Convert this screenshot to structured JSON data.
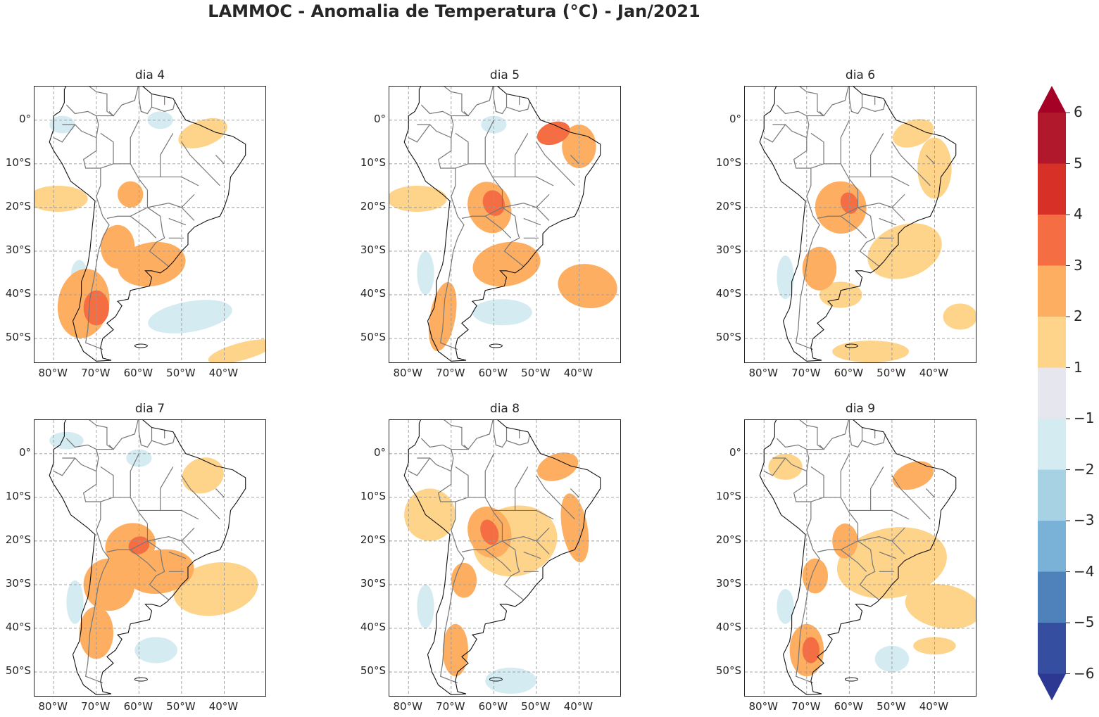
{
  "title": "LAMMOC - Anomalia de Temperatura (°C) - Jan/2021",
  "panels": [
    {
      "title": "dia 4"
    },
    {
      "title": "dia 5"
    },
    {
      "title": "dia 6"
    },
    {
      "title": "dia 7"
    },
    {
      "title": "dia 8"
    },
    {
      "title": "dia 9"
    }
  ],
  "lat_ticks": [
    "0°",
    "10°S",
    "20°S",
    "30°S",
    "40°S",
    "50°S"
  ],
  "lon_ticks": [
    "80°W",
    "70°W",
    "60°W",
    "50°W",
    "40°W"
  ],
  "colorbar": {
    "ticks": [
      "6",
      "5",
      "4",
      "3",
      "2",
      "1",
      "−1",
      "−2",
      "−3",
      "−4",
      "−5",
      "−6"
    ],
    "colors": [
      "#a50026",
      "#b2182b",
      "#d73027",
      "#f46d43",
      "#fdae61",
      "#fed38a",
      "#e6e6ef",
      "#d4ebf2",
      "#a6d2e4",
      "#7ab1d6",
      "#4f82bb",
      "#364ea0",
      "#2d3892"
    ]
  }
}
